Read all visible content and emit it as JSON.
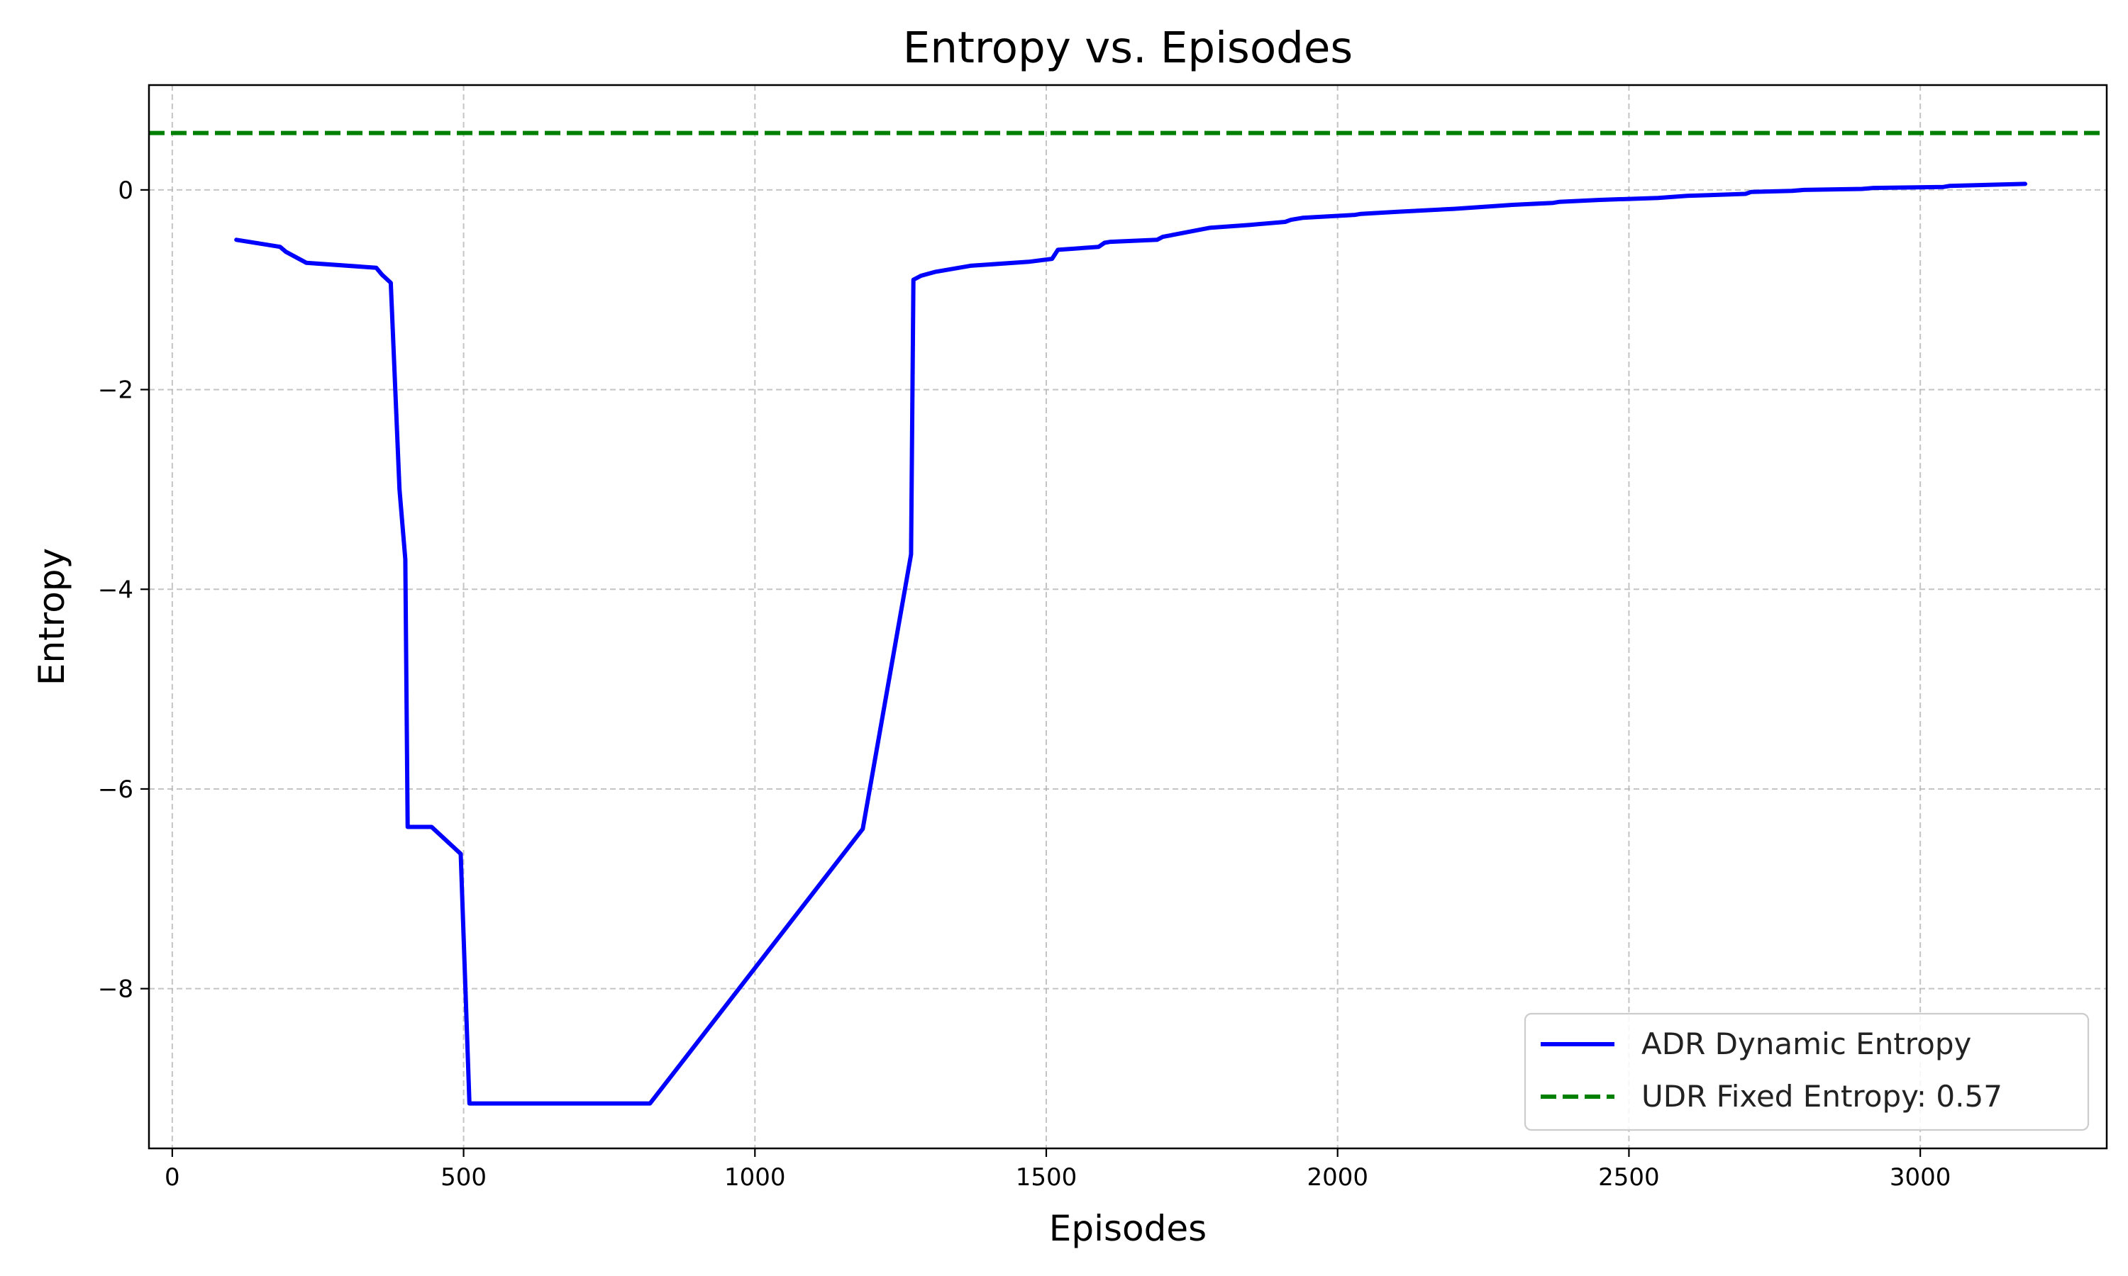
{
  "chart_data": {
    "type": "line",
    "title": "Entropy vs. Episodes",
    "xlabel": "Episodes",
    "ylabel": "Entropy",
    "xlim": [
      -40,
      3320
    ],
    "ylim": [
      -9.6,
      1.05
    ],
    "xticks": [
      0,
      500,
      1000,
      1500,
      2000,
      2500,
      3000
    ],
    "xtick_labels": [
      "0",
      "500",
      "1000",
      "1500",
      "2000",
      "2500",
      "3000"
    ],
    "yticks": [
      0,
      -2,
      -4,
      -6,
      -8
    ],
    "ytick_labels": [
      "0",
      "−2",
      "−4",
      "−6",
      "−8"
    ],
    "grid": true,
    "legend_position": "bottom-right",
    "series": [
      {
        "name": "ADR Dynamic Entropy",
        "color": "#0000ff",
        "style": "solid",
        "x": [
          110,
          185,
          195,
          230,
          350,
          360,
          375,
          390,
          400,
          404,
          410,
          445,
          495,
          510,
          820,
          1185,
          1268,
          1272,
          1285,
          1310,
          1370,
          1470,
          1510,
          1520,
          1590,
          1600,
          1610,
          1690,
          1700,
          1780,
          1850,
          1910,
          1920,
          1940,
          2030,
          2040,
          2100,
          2200,
          2300,
          2370,
          2380,
          2450,
          2550,
          2600,
          2700,
          2710,
          2780,
          2800,
          2900,
          2920,
          3040,
          3050,
          3180
        ],
        "y": [
          -0.5,
          -0.57,
          -0.62,
          -0.73,
          -0.78,
          -0.85,
          -0.93,
          -3.0,
          -3.7,
          -6.38,
          -6.38,
          -6.38,
          -6.65,
          -9.15,
          -9.15,
          -6.4,
          -3.65,
          -0.9,
          -0.86,
          -0.82,
          -0.76,
          -0.72,
          -0.69,
          -0.6,
          -0.57,
          -0.53,
          -0.52,
          -0.5,
          -0.47,
          -0.38,
          -0.35,
          -0.32,
          -0.3,
          -0.28,
          -0.25,
          -0.24,
          -0.22,
          -0.19,
          -0.15,
          -0.13,
          -0.12,
          -0.1,
          -0.08,
          -0.06,
          -0.04,
          -0.02,
          -0.01,
          0.0,
          0.01,
          0.02,
          0.03,
          0.04,
          0.06
        ]
      },
      {
        "name": "UDR Fixed Entropy: 0.57",
        "color": "#008000",
        "style": "dashed",
        "value": 0.57
      }
    ]
  }
}
